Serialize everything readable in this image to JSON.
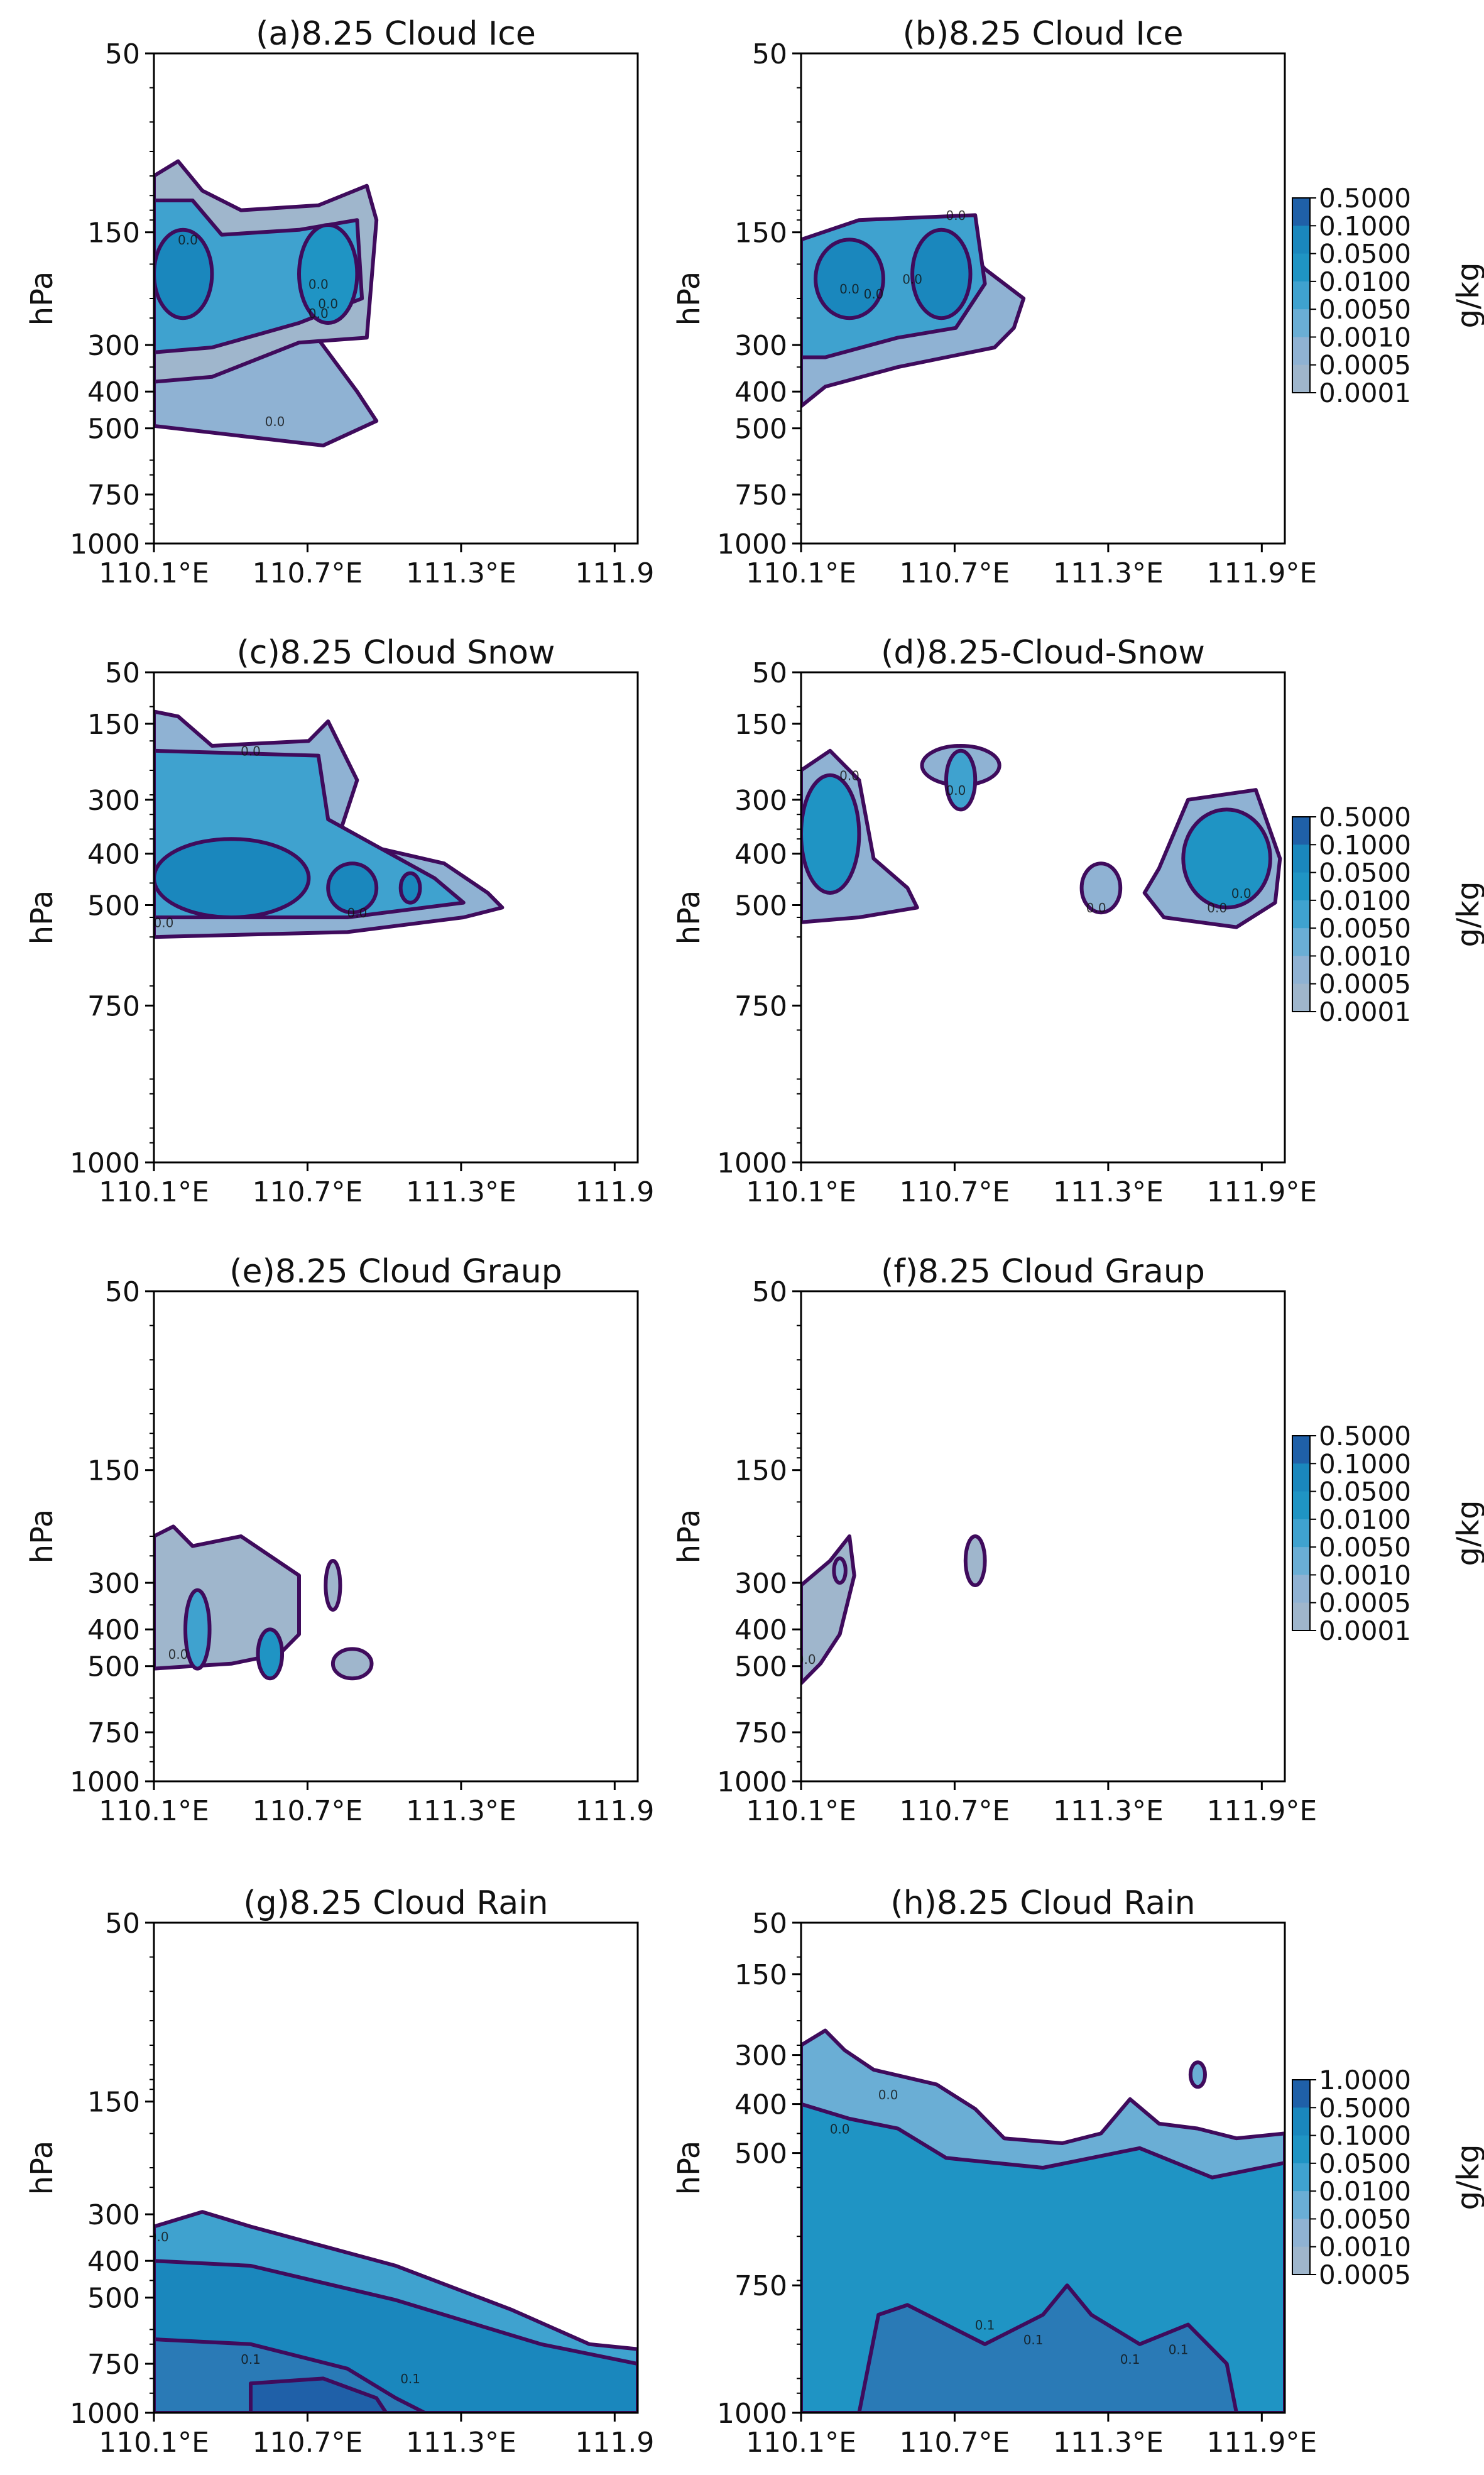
{
  "figure": {
    "panel_count": 8,
    "colorbar_unit": "g/kg",
    "contour_line_color": "#3f0b5c",
    "palette": [
      "#9fb6cc",
      "#8fb2d3",
      "#6aaed5",
      "#3fa2cf",
      "#1f94c4",
      "#1a87bd",
      "#2a7ab6",
      "#1f60a8",
      "#164b96"
    ]
  },
  "chart_data": [
    {
      "type": "contour",
      "title": "(a)8.25 Cloud Ice",
      "ylabel": "hPa",
      "x_ticks": [
        "110.1°E",
        "110.7°E",
        "111.3°E",
        "111.9"
      ],
      "y_ticks": [
        "50",
        "150",
        "300",
        "400",
        "500",
        "750",
        "1000"
      ],
      "y_kind": "upper",
      "colorbar": null,
      "contour_labels": [
        "0.0",
        "0.0",
        "0.0",
        "0.0",
        "0.0"
      ]
    },
    {
      "type": "contour",
      "title": "(b)8.25 Cloud Ice",
      "ylabel": "hPa",
      "x_ticks": [
        "110.1°E",
        "110.7°E",
        "111.3°E",
        "111.9°E"
      ],
      "y_ticks": [
        "50",
        "150",
        "300",
        "400",
        "500",
        "750",
        "1000"
      ],
      "y_kind": "upper",
      "colorbar": {
        "label": "g/kg",
        "levels": [
          "0.5000",
          "0.1000",
          "0.0500",
          "0.0100",
          "0.0050",
          "0.0010",
          "0.0005",
          "0.0001"
        ]
      },
      "contour_labels": [
        "0.0",
        "0.0",
        "0.0",
        "0.0"
      ]
    },
    {
      "type": "contour",
      "title": "(c)8.25 Cloud Snow",
      "ylabel": "hPa",
      "x_ticks": [
        "110.1°E",
        "110.7°E",
        "111.3°E",
        "111.9"
      ],
      "y_ticks": [
        "50",
        "150",
        "300",
        "400",
        "500",
        "750",
        "1000"
      ],
      "y_kind": "mid",
      "colorbar": null,
      "contour_labels": [
        "0.0",
        "0.0",
        "0.0"
      ]
    },
    {
      "type": "contour",
      "title": "(d)8.25-Cloud-Snow",
      "ylabel": "hPa",
      "x_ticks": [
        "110.1°E",
        "110.7°E",
        "111.3°E",
        "111.9°E"
      ],
      "y_ticks": [
        "50",
        "150",
        "300",
        "400",
        "500",
        "750",
        "1000"
      ],
      "y_kind": "mid",
      "colorbar": {
        "label": "g/kg",
        "levels": [
          "0.5000",
          "0.1000",
          "0.0500",
          "0.0100",
          "0.0050",
          "0.0010",
          "0.0005",
          "0.0001"
        ]
      },
      "contour_labels": [
        "0.0",
        "0.0",
        "0.0",
        "0.0",
        "0.0"
      ]
    },
    {
      "type": "contour",
      "title": "(e)8.25 Cloud Graup",
      "ylabel": "hPa",
      "x_ticks": [
        "110.1°E",
        "110.7°E",
        "111.3°E",
        "111.9"
      ],
      "y_ticks": [
        "50",
        "150",
        "300",
        "400",
        "500",
        "750",
        "1000"
      ],
      "y_kind": "upper",
      "colorbar": null,
      "contour_labels": [
        "0.0"
      ]
    },
    {
      "type": "contour",
      "title": "(f)8.25 Cloud Graup",
      "ylabel": "hPa",
      "x_ticks": [
        "110.1°E",
        "110.7°E",
        "111.3°E",
        "111.9°E"
      ],
      "y_ticks": [
        "50",
        "150",
        "300",
        "400",
        "500",
        "750",
        "1000"
      ],
      "y_kind": "upper",
      "colorbar": {
        "label": "g/kg",
        "levels": [
          "0.5000",
          "0.1000",
          "0.0500",
          "0.0100",
          "0.0050",
          "0.0010",
          "0.0005",
          "0.0001"
        ]
      },
      "contour_labels": [
        "0.0"
      ]
    },
    {
      "type": "contour",
      "title": "(g)8.25 Cloud Rain",
      "ylabel": "hPa",
      "x_ticks": [
        "110.1°E",
        "110.7°E",
        "111.3°E",
        "111.9"
      ],
      "y_ticks": [
        "50",
        "150",
        "300",
        "400",
        "500",
        "750",
        "1000"
      ],
      "y_kind": "upper",
      "colorbar": null,
      "contour_labels": [
        "0.0",
        "0.1",
        "0.1"
      ]
    },
    {
      "type": "contour",
      "title": "(h)8.25 Cloud Rain",
      "ylabel": "hPa",
      "x_ticks": [
        "110.1°E",
        "110.7°E",
        "111.3°E",
        "111.9°E"
      ],
      "y_ticks": [
        "50",
        "150",
        "300",
        "400",
        "500",
        "750",
        "1000"
      ],
      "y_kind": "rain",
      "colorbar": {
        "label": "g/kg",
        "levels": [
          "1.0000",
          "0.5000",
          "0.1000",
          "0.0500",
          "0.0100",
          "0.0050",
          "0.0010",
          "0.0005"
        ]
      },
      "contour_labels": [
        "0.0",
        "0.0",
        "0.1",
        "0.1",
        "0.1",
        "0.1"
      ]
    }
  ]
}
